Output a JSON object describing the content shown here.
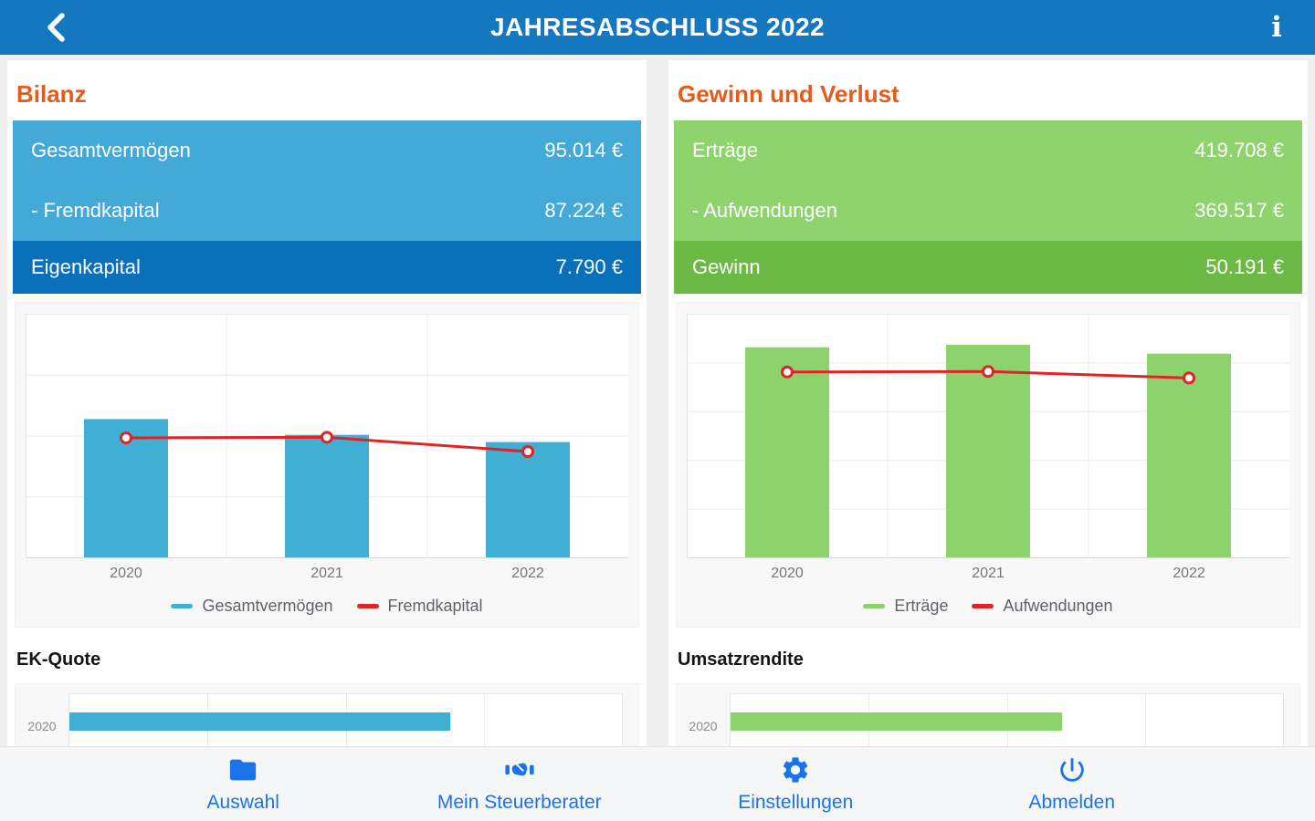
{
  "header": {
    "title": "JAHRESABSCHLUSS 2022",
    "info_glyph": "i"
  },
  "colors": {
    "header_bar": "#1478c0",
    "title_orange": "#e55c1a",
    "row_light_blue": "#43a9d7",
    "row_dark_blue": "#0b70ba",
    "row_light_green": "#8fd36f",
    "row_dark_green": "#6cba45",
    "bar_blue": "#41aed3",
    "bar_green": "#8ed26e",
    "line_red": "#e02424",
    "nav_blue": "#1a73e8",
    "page_bg": "#efefef",
    "chart_card_bg": "#f8f8f8"
  },
  "panels": [
    {
      "title": "Bilanz",
      "rows": [
        {
          "label": "Gesamtvermögen",
          "value": "95.014 €"
        },
        {
          "label": "- Fremdkapital",
          "value": "87.224 €"
        },
        {
          "label": "Eigenkapital",
          "value": "7.790 €"
        }
      ]
    },
    {
      "title": "Gewinn und Verlust",
      "rows": [
        {
          "label": "Erträge",
          "value": "419.708 €"
        },
        {
          "label": "- Aufwendungen",
          "value": "369.517 €"
        },
        {
          "label": "Gewinn",
          "value": "50.191 €"
        }
      ]
    }
  ],
  "chart_data": [
    {
      "type": "bar",
      "panel": "Bilanz",
      "categories": [
        "2020",
        "2021",
        "2022"
      ],
      "series": [
        {
          "name": "Gesamtvermögen",
          "type": "bar",
          "color": "#41aed3",
          "values": [
            114000,
            101000,
            95014
          ]
        },
        {
          "name": "Fremdkapital",
          "type": "line",
          "color": "#e02424",
          "values": [
            98500,
            99000,
            87224
          ]
        }
      ],
      "ylim": [
        0,
        200000
      ],
      "grid_rows": 4,
      "grid": true,
      "legend_position": "bottom",
      "note": "y-axis unlabeled; 2020/2021 values estimated from bar heights, 2022 values match KPI rows"
    },
    {
      "type": "bar",
      "panel": "Gewinn und Verlust",
      "categories": [
        "2020",
        "2021",
        "2022"
      ],
      "series": [
        {
          "name": "Erträge",
          "type": "bar",
          "color": "#8ed26e",
          "values": [
            433000,
            438000,
            419708
          ]
        },
        {
          "name": "Aufwendungen",
          "type": "line",
          "color": "#e02424",
          "values": [
            382000,
            383000,
            369517
          ]
        }
      ],
      "ylim": [
        0,
        500000
      ],
      "grid_rows": 5,
      "grid": true,
      "legend_position": "bottom",
      "note": "y-axis unlabeled; 2020/2021 values estimated from bar heights, 2022 values match KPI rows"
    },
    {
      "type": "bar",
      "orientation": "horizontal",
      "title": "EK-Quote",
      "categories": [
        "2020"
      ],
      "values": [
        13.8
      ],
      "xlim": [
        0,
        20
      ],
      "color": "#41aed3",
      "note": "chart clipped by bottom nav; only 2020 bar visible, value estimated from bar length"
    },
    {
      "type": "bar",
      "orientation": "horizontal",
      "title": "Umsatzrendite",
      "categories": [
        "2020"
      ],
      "values": [
        12.0
      ],
      "xlim": [
        0,
        20
      ],
      "color": "#8ed26e",
      "note": "chart clipped by bottom nav; only 2020 bar visible, value estimated from bar length"
    }
  ],
  "nav": {
    "items": [
      {
        "label": "Auswahl",
        "icon": "folder-icon"
      },
      {
        "label": "Mein Steuerberater",
        "icon": "handshake-icon"
      },
      {
        "label": "Einstellungen",
        "icon": "gear-icon"
      },
      {
        "label": "Abmelden",
        "icon": "power-icon"
      }
    ]
  }
}
